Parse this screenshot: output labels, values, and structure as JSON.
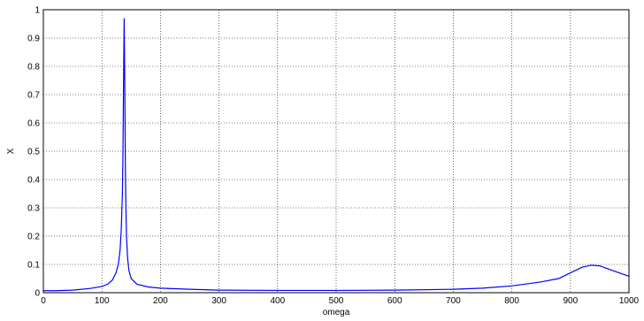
{
  "chart_data": {
    "type": "line",
    "title": "",
    "xlabel": "omega",
    "ylabel": "X",
    "xlim": [
      0,
      1000
    ],
    "ylim": [
      0,
      1
    ],
    "xticks": [
      0,
      100,
      200,
      300,
      400,
      500,
      600,
      700,
      800,
      900,
      1000
    ],
    "yticks": [
      0,
      0.1,
      0.2,
      0.3,
      0.4,
      0.5,
      0.6,
      0.7,
      0.8,
      0.9,
      1
    ],
    "grid": true,
    "line_color": "#0000ff",
    "series": [
      {
        "x": [
          0,
          20,
          50,
          80,
          100,
          110,
          118,
          124,
          128,
          131,
          133,
          135,
          136,
          137,
          138,
          139,
          140,
          141,
          142,
          144,
          146,
          150,
          160,
          180,
          200,
          250,
          300,
          400,
          500,
          600,
          700,
          750,
          800,
          850,
          880,
          900,
          920,
          935,
          950,
          970,
          1000
        ],
        "y": [
          0.007,
          0.007,
          0.009,
          0.015,
          0.022,
          0.03,
          0.045,
          0.07,
          0.1,
          0.15,
          0.22,
          0.35,
          0.5,
          0.75,
          0.97,
          0.75,
          0.45,
          0.3,
          0.2,
          0.12,
          0.08,
          0.05,
          0.03,
          0.02,
          0.016,
          0.012,
          0.009,
          0.008,
          0.008,
          0.009,
          0.012,
          0.016,
          0.024,
          0.038,
          0.05,
          0.07,
          0.09,
          0.097,
          0.095,
          0.08,
          0.058
        ]
      }
    ]
  }
}
